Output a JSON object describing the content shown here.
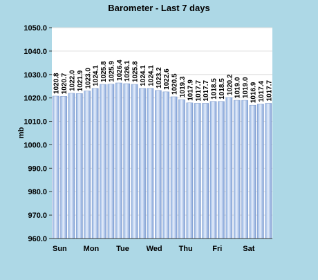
{
  "chart_data": {
    "type": "bar",
    "title": "Barometer - Last 7 days",
    "ylabel": "mb",
    "xlabel": "",
    "ylim": [
      960,
      1050
    ],
    "ytick_step": 10,
    "day_labels": [
      "Sun",
      "Mon",
      "Tue",
      "Wed",
      "Thu",
      "Fri",
      "Sat"
    ],
    "grid": true,
    "values": [
      1020.8,
      1020.7,
      1022.0,
      1021.9,
      1023.0,
      1024.1,
      1025.8,
      1025.9,
      1026.4,
      1026.1,
      1025.8,
      1024.1,
      1024.1,
      1023.2,
      1022.6,
      1020.5,
      1019.3,
      1017.9,
      1017.7,
      1017.7,
      1018.5,
      1018.5,
      1020.2,
      1019.0,
      1019.0,
      1016.9,
      1017.4,
      1017.7
    ],
    "bar_color": "#a8c0e8",
    "page_background": "#add8e6",
    "plot_background": "#ffffff"
  }
}
